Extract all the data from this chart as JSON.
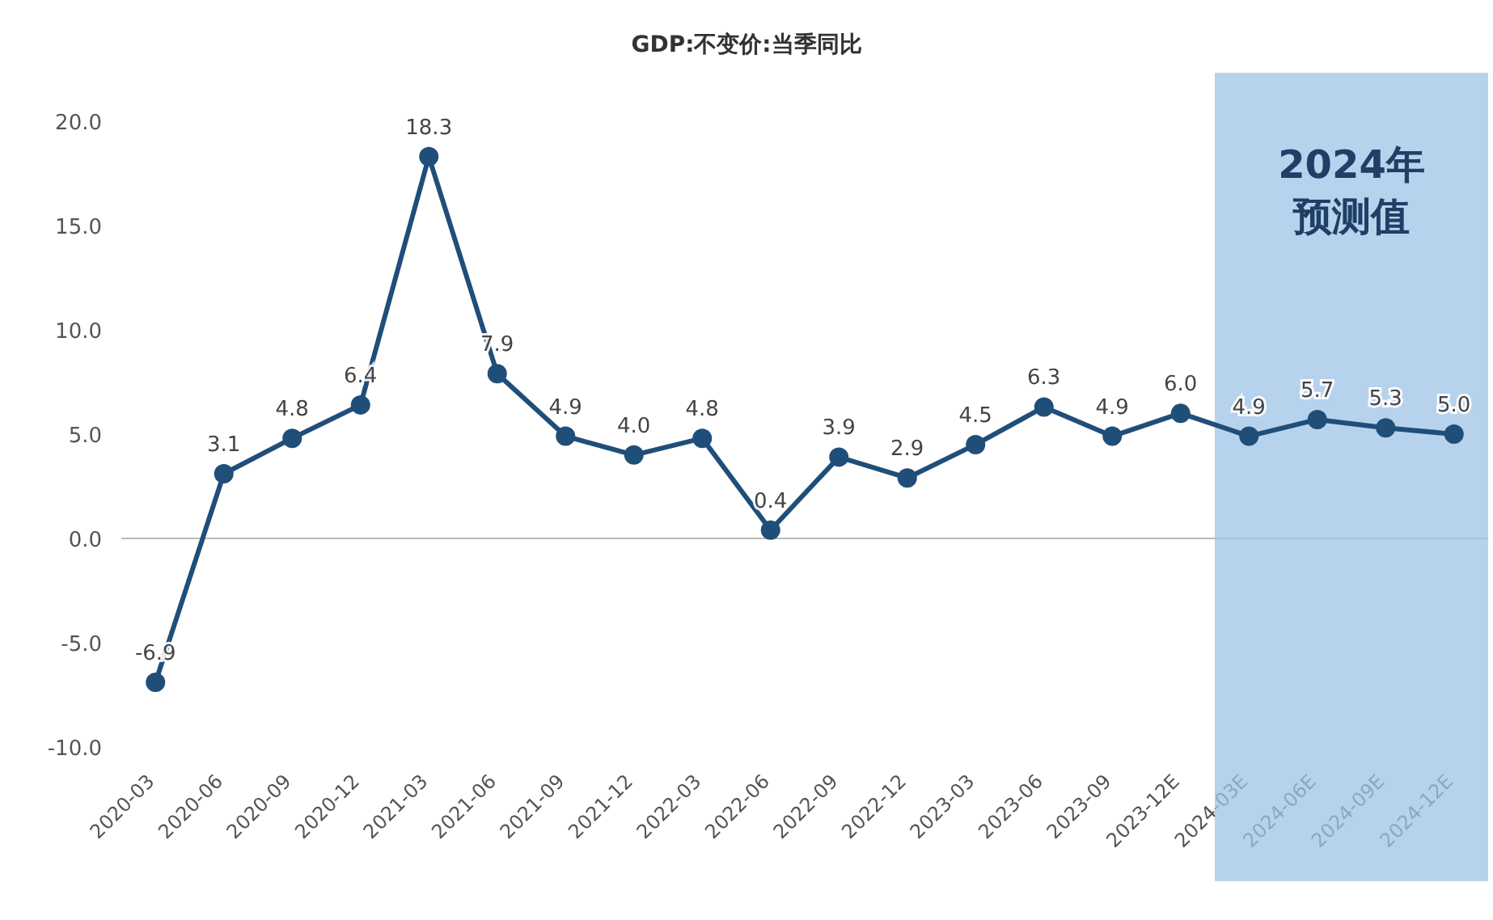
{
  "chart_data": {
    "type": "line",
    "title": "GDP:不变价:当季同比",
    "categories": [
      "2020-03",
      "2020-06",
      "2020-09",
      "2020-12",
      "2021-03",
      "2021-06",
      "2021-09",
      "2021-12",
      "2022-03",
      "2022-06",
      "2022-09",
      "2022-12",
      "2023-03",
      "2023-06",
      "2023-09",
      "2023-12E",
      "2024-03E",
      "2024-06E",
      "2024-09E",
      "2024-12E"
    ],
    "series": [
      {
        "color": "#1f4e79",
        "values": [
          -6.9,
          3.1,
          4.8,
          6.4,
          18.3,
          7.9,
          4.9,
          4.0,
          4.8,
          0.4,
          3.9,
          2.9,
          4.5,
          6.3,
          4.9,
          6.0,
          4.9,
          5.7,
          5.3,
          5.0
        ],
        "value_labels": [
          "-6.9",
          "3.1",
          "4.8",
          "6.4",
          "18.3",
          "7.9",
          "4.9",
          "4.0",
          "4.8",
          "0.4",
          "3.9",
          "2.9",
          "4.5",
          "6.3",
          "4.9",
          "6.0",
          "4.9",
          "5.7",
          "5.3",
          "5.0"
        ]
      }
    ],
    "ylim": [
      -10,
      20
    ],
    "yticks": [
      {
        "value": -10,
        "label": "-10.0"
      },
      {
        "value": -5,
        "label": "-5.0"
      },
      {
        "value": 0,
        "label": "0.0"
      },
      {
        "value": 5,
        "label": "5.0"
      },
      {
        "value": 10,
        "label": "10.0"
      },
      {
        "value": 15,
        "label": "15.0"
      },
      {
        "value": 20,
        "label": "20.0"
      }
    ],
    "bands": [
      {
        "axis": "x",
        "from": "2024-03E",
        "to": "2024-12E",
        "label": "2024年预测值",
        "color": "#9fc3e7"
      }
    ],
    "marker": "circle",
    "line_style": "solid"
  }
}
